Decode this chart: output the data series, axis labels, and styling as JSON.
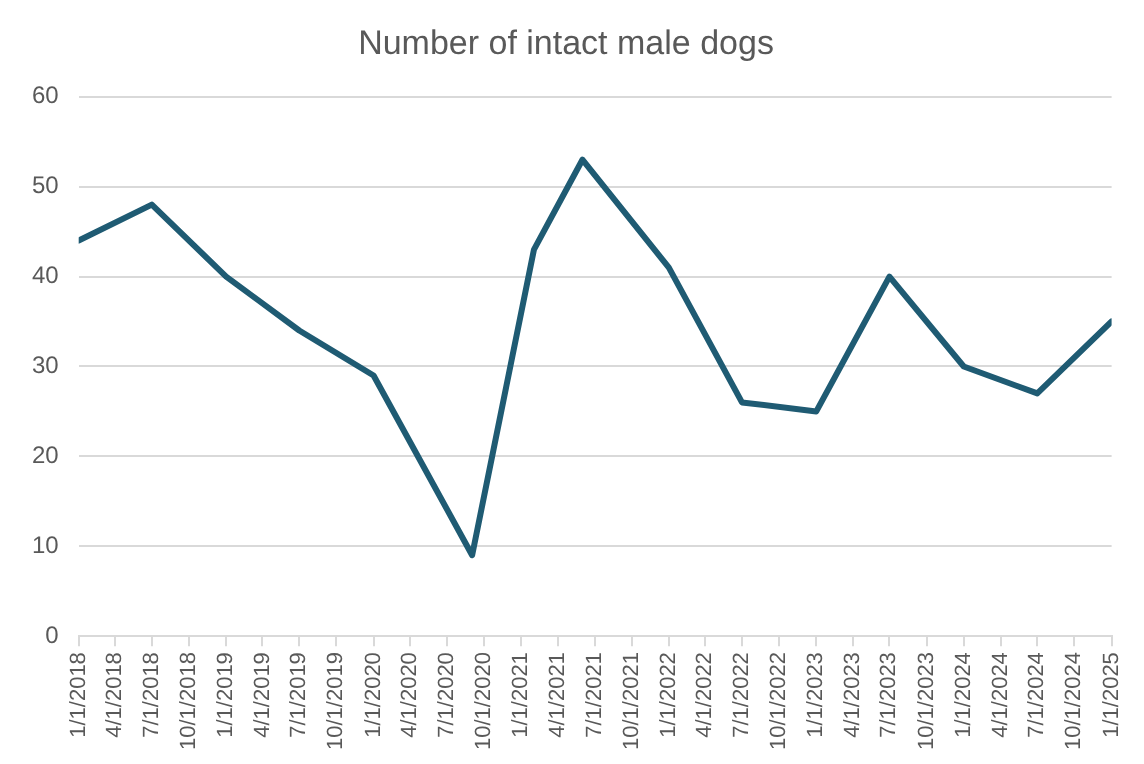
{
  "chart_data": {
    "type": "line",
    "title": "Number of intact male dogs",
    "x": [
      "2018-01-01",
      "2018-07-01",
      "2019-01-01",
      "2019-07-01",
      "2020-01-01",
      "2020-09-01",
      "2021-02-01",
      "2021-06-01",
      "2022-01-01",
      "2022-07-01",
      "2023-01-01",
      "2023-07-01",
      "2024-01-01",
      "2024-07-01",
      "2025-01-01"
    ],
    "series": [
      {
        "color": "#1f5b73",
        "values": [
          44,
          48,
          40,
          34,
          29,
          9,
          43,
          53,
          41,
          26,
          25,
          40,
          30,
          27,
          35
        ]
      }
    ],
    "xlim": [
      "2018-01-01",
      "2025-01-01"
    ],
    "xticks": [
      {
        "value": "2018-01-01",
        "label": "1/1/2018"
      },
      {
        "value": "2018-04-01",
        "label": "4/1/2018"
      },
      {
        "value": "2018-07-01",
        "label": "7/1/2018"
      },
      {
        "value": "2018-10-01",
        "label": "10/1/2018"
      },
      {
        "value": "2019-01-01",
        "label": "1/1/2019"
      },
      {
        "value": "2019-04-01",
        "label": "4/1/2019"
      },
      {
        "value": "2019-07-01",
        "label": "7/1/2019"
      },
      {
        "value": "2019-10-01",
        "label": "10/1/2019"
      },
      {
        "value": "2020-01-01",
        "label": "1/1/2020"
      },
      {
        "value": "2020-04-01",
        "label": "4/1/2020"
      },
      {
        "value": "2020-07-01",
        "label": "7/1/2020"
      },
      {
        "value": "2020-10-01",
        "label": "10/1/2020"
      },
      {
        "value": "2021-01-01",
        "label": "1/1/2021"
      },
      {
        "value": "2021-04-01",
        "label": "4/1/2021"
      },
      {
        "value": "2021-07-01",
        "label": "7/1/2021"
      },
      {
        "value": "2021-10-01",
        "label": "10/1/2021"
      },
      {
        "value": "2022-01-01",
        "label": "1/1/2022"
      },
      {
        "value": "2022-04-01",
        "label": "4/1/2022"
      },
      {
        "value": "2022-07-01",
        "label": "7/1/2022"
      },
      {
        "value": "2022-10-01",
        "label": "10/1/2022"
      },
      {
        "value": "2023-01-01",
        "label": "1/1/2023"
      },
      {
        "value": "2023-04-01",
        "label": "4/1/2023"
      },
      {
        "value": "2023-07-01",
        "label": "7/1/2023"
      },
      {
        "value": "2023-10-01",
        "label": "10/1/2023"
      },
      {
        "value": "2024-01-01",
        "label": "1/1/2024"
      },
      {
        "value": "2024-04-01",
        "label": "4/1/2024"
      },
      {
        "value": "2024-07-01",
        "label": "7/1/2024"
      },
      {
        "value": "2024-10-01",
        "label": "10/1/2024"
      },
      {
        "value": "2025-01-01",
        "label": "1/1/2025"
      }
    ],
    "ylim": [
      0,
      60
    ],
    "yticks": [
      0,
      10,
      20,
      30,
      40,
      50,
      60
    ],
    "grid": "y",
    "marker": "none",
    "line_style": "solid",
    "legend": false
  }
}
